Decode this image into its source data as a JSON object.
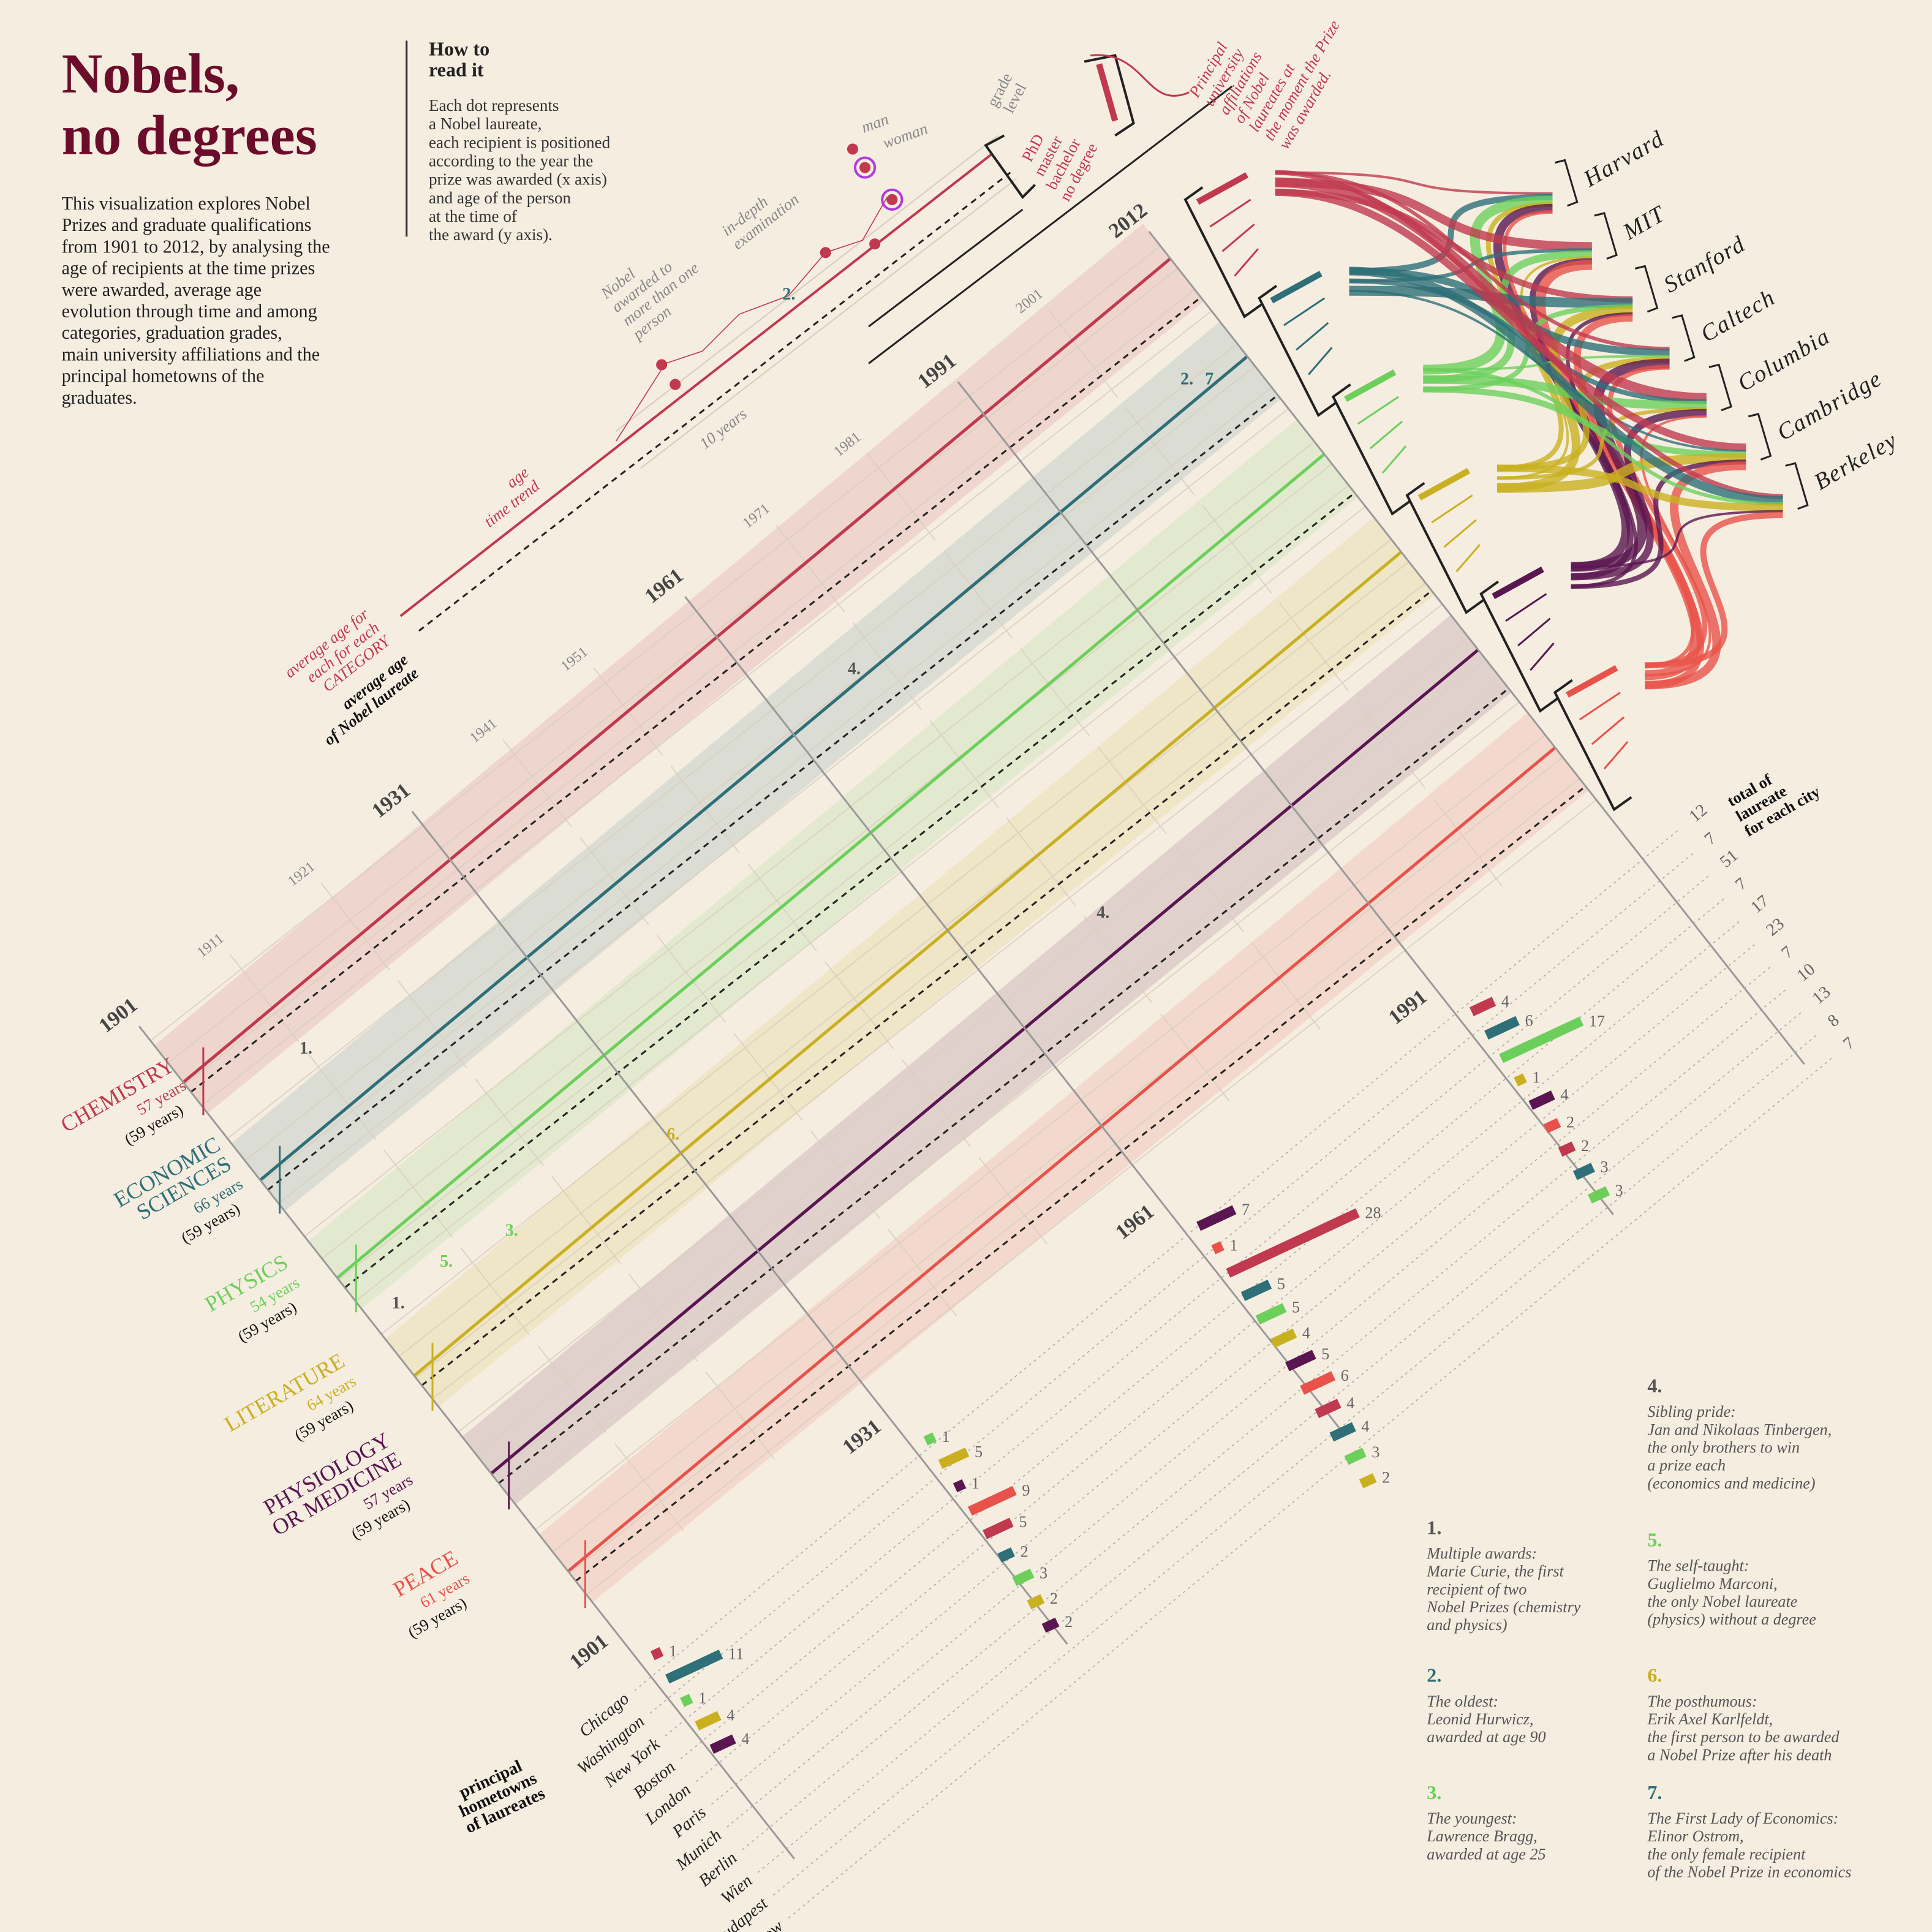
{
  "header": {
    "title": [
      "Nobels,",
      "no degrees"
    ],
    "intro": [
      "This visualization explores Nobel",
      "Prizes and graduate qualifications",
      "from 1901 to 2012, by analysing the",
      "age of recipients at the time prizes",
      "were awarded, average age",
      "evolution through time and among",
      "categories, graduation grades,",
      "main university affiliations and the",
      "principal hometowns of the",
      "graduates."
    ]
  },
  "how_to": {
    "title": [
      "How to",
      "read it"
    ],
    "text": [
      "Each dot represents",
      "a Nobel laureate,",
      "each recipient is positioned",
      "according to the year the",
      "prize was awarded (x axis)",
      "and age of the person",
      "at the time of",
      "the award (y axis)."
    ]
  },
  "legend": {
    "man": "man",
    "woman": "woman",
    "grade_title": [
      "grade",
      "level"
    ],
    "grades": [
      "PhD",
      "master",
      "bachelor",
      "no degree"
    ]
  },
  "annotations": {
    "age_trend": [
      "age",
      "time trend"
    ],
    "category_average": [
      "average age for",
      "each for each",
      "CATEGORY"
    ],
    "overall_average": [
      "average age",
      "of Nobel laureate"
    ],
    "multi_person": [
      "Nobel",
      "awarded to",
      "more than one",
      "person"
    ],
    "in_depth": [
      "in-depth",
      "examination"
    ],
    "ten_years": "10 years",
    "universities": [
      "Principal",
      "university",
      "affiliations",
      "of Nobel",
      "laureates at",
      "the moment the Prize",
      "was awarded."
    ]
  },
  "years": {
    "major": [
      "1901",
      "1931",
      "1961",
      "1991",
      "2012"
    ],
    "minor": [
      "1911",
      "1921",
      "1941",
      "1951",
      "1971",
      "1981",
      "2001"
    ]
  },
  "categories": [
    {
      "name": [
        "CHEMISTRY"
      ],
      "average": "57 years",
      "overall": "(59 years)",
      "color": "#c0394f"
    },
    {
      "name": [
        "ECONOMIC",
        "SCIENCES"
      ],
      "average": "66 years",
      "overall": "(59 years)",
      "color": "#2e6f78"
    },
    {
      "name": [
        "PHYSICS"
      ],
      "average": "54 years",
      "overall": "(59 years)",
      "color": "#6ccf5c"
    },
    {
      "name": [
        "LITERATURE"
      ],
      "average": "64 years",
      "overall": "(59 years)",
      "color": "#c9b021"
    },
    {
      "name": [
        "PHYSIOLOGY",
        "OR MEDICINE"
      ],
      "average": "57 years",
      "overall": "(59 years)",
      "color": "#5a1650"
    },
    {
      "name": [
        "PEACE"
      ],
      "average": "61 years",
      "overall": "(59 years)",
      "color": "#e8524a"
    }
  ],
  "universities": [
    "Harvard",
    "MIT",
    "Stanford",
    "Caltech",
    "Columbia",
    "Cambridge",
    "Berkeley"
  ],
  "cities": {
    "title": [
      "principal",
      "hometowns",
      "of laureates"
    ],
    "total_title": [
      "total of",
      "laureate",
      "for each city"
    ],
    "names": [
      "Chicago",
      "Washington",
      "New York",
      "Boston",
      "London",
      "Paris",
      "Munich",
      "Berlin",
      "Wien",
      "Budapest",
      "Moscow"
    ],
    "totals": [
      12,
      7,
      51,
      7,
      17,
      23,
      7,
      10,
      13,
      8,
      7
    ]
  },
  "city_blocks": [
    {
      "values": [
        1,
        11,
        1,
        4,
        4
      ]
    },
    {
      "values": [
        1,
        5,
        1,
        9,
        5,
        2,
        3,
        2,
        2
      ]
    },
    {
      "values": [
        7,
        1,
        28,
        5,
        5,
        4,
        5,
        6,
        4,
        4,
        3,
        2
      ]
    },
    {
      "values": [
        4,
        6,
        17,
        1,
        4,
        2,
        2,
        3,
        3
      ]
    }
  ],
  "notes": [
    {
      "number": "1.",
      "color": "#555555",
      "lines": [
        "Multiple awards:",
        "Marie Curie, the first",
        "recipient of two",
        "Nobel Prizes  (chemistry",
        "and physics)"
      ]
    },
    {
      "number": "2.",
      "color": "#2e6f78",
      "lines": [
        "The oldest:",
        "Leonid Hurwicz,",
        "awarded at age 90"
      ]
    },
    {
      "number": "3.",
      "color": "#6ccf5c",
      "lines": [
        "The youngest:",
        "Lawrence Bragg,",
        "awarded at age 25"
      ]
    },
    {
      "number": "4.",
      "color": "#555555",
      "lines": [
        "Sibling pride:",
        "Jan and Nikolaas Tinbergen,",
        "the only brothers to win",
        "a prize each",
        "(economics and medicine)"
      ]
    },
    {
      "number": "5.",
      "color": "#6ccf5c",
      "lines": [
        "The self-taught:",
        "Guglielmo Marconi,",
        "the only Nobel laureate",
        "(physics) without a degree"
      ]
    },
    {
      "number": "6.",
      "color": "#c9b021",
      "lines": [
        "The posthumous:",
        "Erik Axel Karlfeldt,",
        "the first person to be awarded",
        "a Nobel Prize after his death"
      ]
    },
    {
      "number": "7.",
      "color": "#2e6f78",
      "lines": [
        "The First Lady of Economics:",
        "Elinor Ostrom,",
        "the only female recipient",
        "of the Nobel Prize in economics"
      ]
    }
  ]
}
